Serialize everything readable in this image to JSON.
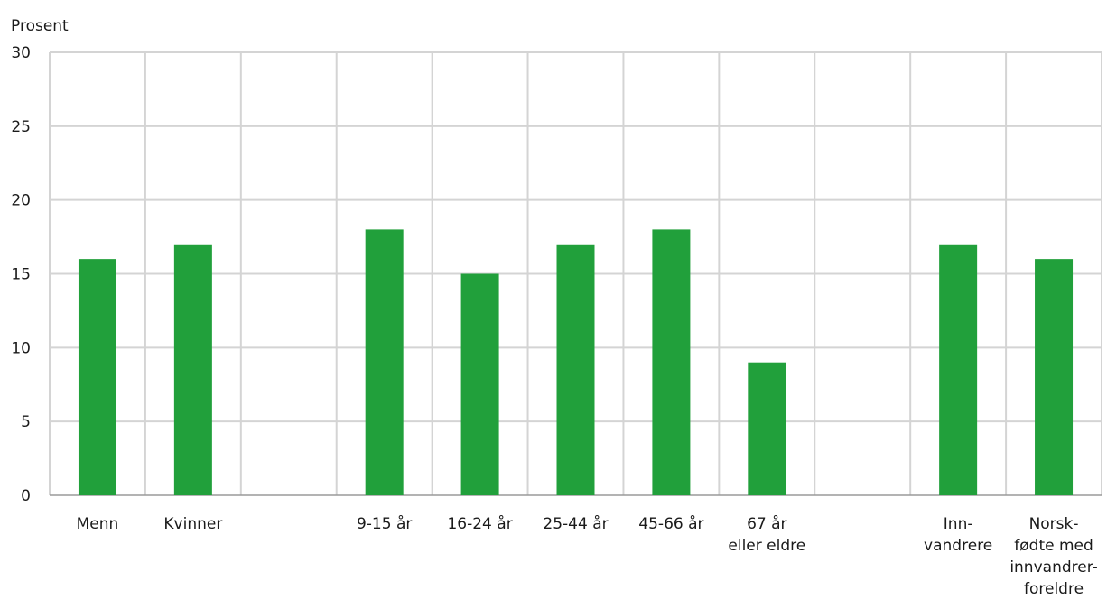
{
  "chart_data": {
    "type": "bar",
    "ylabel": "Prosent",
    "ylim": [
      0,
      30
    ],
    "yticks": [
      0,
      5,
      10,
      15,
      20,
      25,
      30
    ],
    "categories": [
      [
        "Menn"
      ],
      [
        "Kvinner"
      ],
      [],
      [
        "9-15 år"
      ],
      [
        "16-24 år"
      ],
      [
        "25-44 år"
      ],
      [
        "45-66 år"
      ],
      [
        "67 år",
        "eller eldre"
      ],
      [],
      [
        "Inn-",
        "vandrere"
      ],
      [
        "Norsk-",
        "fødte med",
        "innvandrer-",
        "foreldre"
      ]
    ],
    "values": [
      16,
      17,
      null,
      18,
      15,
      17,
      18,
      9,
      null,
      17,
      16
    ],
    "bar_color": "#21a03b",
    "grid": true,
    "legend": "none"
  }
}
